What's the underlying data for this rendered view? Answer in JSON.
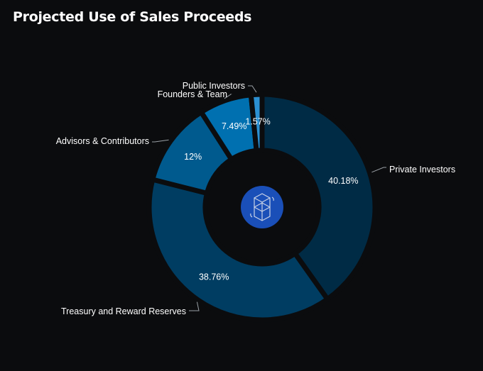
{
  "title": "Projected Use of Sales Proceeds",
  "chart_data": {
    "type": "pie",
    "subtype": "donut",
    "title": "Projected Use of Sales Proceeds",
    "categories": [
      "Private Investors",
      "Treasury and Reward Reserves",
      "Advisors & Contributors",
      "Founders & Team",
      "Public Investors"
    ],
    "values": [
      40.18,
      38.76,
      12,
      7.49,
      1.57
    ],
    "labels": [
      "40.18%",
      "38.76%",
      "12%",
      "7.49%",
      "1.57%"
    ],
    "colors": [
      "#002b45",
      "#003d62",
      "#005a8e",
      "#0070b0",
      "#2b90d2"
    ],
    "center_icon": "fantom-logo-icon",
    "center_color": "#1a4fb8"
  }
}
